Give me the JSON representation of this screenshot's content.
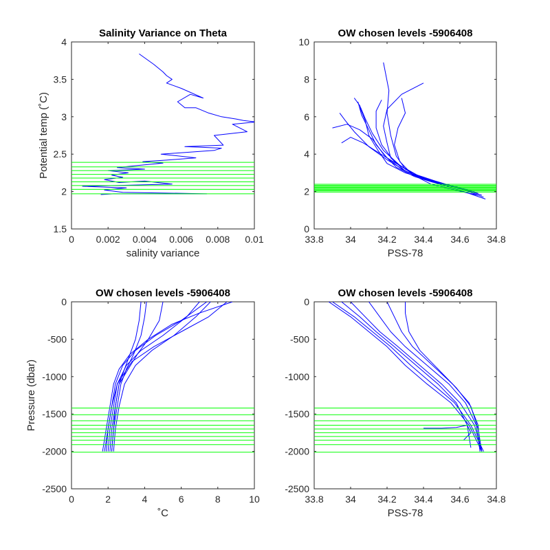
{
  "colors": {
    "profile": "#0000ff",
    "levels": "#00ff00",
    "axes": "#262626"
  },
  "chart_data": [
    {
      "id": "var",
      "type": "line",
      "title": "Salinity Variance on Theta",
      "xlabel": "salinity variance",
      "ylabel": "Potential temp (˚C)",
      "xlim": [
        0,
        0.01
      ],
      "ylim": [
        1.5,
        4
      ],
      "xticks": [
        0,
        0.002,
        0.004,
        0.006,
        0.008,
        0.01
      ],
      "xtick_labels": [
        "0",
        "0.002",
        "0.004",
        "0.006",
        "0.008",
        "0.01"
      ],
      "yticks": [
        1.5,
        2,
        2.5,
        3,
        3.5,
        4
      ],
      "ytick_labels": [
        "1.5",
        "2",
        "2.5",
        "3",
        "3.5",
        "4"
      ],
      "reverse_y": false,
      "grid": false,
      "hlines": [
        1.97,
        2.03,
        2.08,
        2.13,
        2.18,
        2.23,
        2.28,
        2.33,
        2.39
      ],
      "series": [
        {
          "x": [
            0.0037,
            0.0045,
            0.005,
            0.0052,
            0.0055,
            0.0052,
            0.006,
            0.0072,
            0.0065,
            0.0058,
            0.0062,
            0.0068,
            0.0075,
            0.0082,
            0.009,
            0.0094,
            0.0101,
            0.0088,
            0.0096,
            0.0078,
            0.0083,
            0.0062,
            0.0082,
            0.0078,
            0.0049,
            0.0068,
            0.0052,
            0.0039,
            0.005,
            0.0037,
            0.0025,
            0.004,
            0.002,
            0.0031,
            0.0022,
            0.0028,
            0.0018,
            0.0026,
            0.004,
            0.0055,
            0.0006,
            0.003,
            0.0018,
            0.0028,
            0.0074,
            0.0023,
            0.0016
          ],
          "y": [
            3.84,
            3.7,
            3.6,
            3.55,
            3.5,
            3.45,
            3.38,
            3.25,
            3.3,
            3.2,
            3.12,
            3.12,
            3.05,
            3.0,
            2.97,
            2.95,
            2.93,
            2.9,
            2.8,
            2.75,
            2.62,
            2.6,
            2.58,
            2.55,
            2.5,
            2.45,
            2.42,
            2.4,
            2.38,
            2.35,
            2.32,
            2.3,
            2.28,
            2.25,
            2.22,
            2.19,
            2.16,
            2.12,
            2.14,
            2.1,
            2.07,
            2.05,
            2.02,
            1.99,
            1.97,
            1.97,
            1.96
          ]
        }
      ]
    },
    {
      "id": "ts",
      "type": "line",
      "title": "OW chosen levels -5906408",
      "xlabel": "PSS-78",
      "ylabel": "",
      "xlim": [
        33.8,
        34.8
      ],
      "ylim": [
        0,
        10
      ],
      "xticks": [
        33.8,
        34,
        34.2,
        34.4,
        34.6,
        34.8
      ],
      "xtick_labels": [
        "33.8",
        "34",
        "34.2",
        "34.4",
        "34.6",
        "34.8"
      ],
      "yticks": [
        0,
        2,
        4,
        6,
        8,
        10
      ],
      "ytick_labels": [
        "0",
        "2",
        "4",
        "6",
        "8",
        "10"
      ],
      "reverse_y": false,
      "grid": false,
      "hlines": [
        1.97,
        2.03,
        2.08,
        2.13,
        2.18,
        2.23,
        2.28,
        2.33,
        2.39
      ],
      "series": [
        {
          "x": [
            34.73,
            34.62,
            34.5,
            34.4,
            34.3,
            34.2,
            34.15,
            34.1,
            34.08,
            34.05
          ],
          "y": [
            1.7,
            2.1,
            2.4,
            2.7,
            3.0,
            3.5,
            4.2,
            5.0,
            5.8,
            6.5
          ]
        },
        {
          "x": [
            34.72,
            34.6,
            34.45,
            34.35,
            34.25,
            34.18,
            34.12,
            34.05,
            33.98,
            33.9
          ],
          "y": [
            1.8,
            2.2,
            2.5,
            2.8,
            3.3,
            4.0,
            4.8,
            5.3,
            5.6,
            5.4
          ]
        },
        {
          "x": [
            34.7,
            34.58,
            34.42,
            34.3,
            34.22,
            34.2,
            34.18,
            34.2,
            34.28,
            34.4
          ],
          "y": [
            1.9,
            2.2,
            2.6,
            3.1,
            3.8,
            4.6,
            5.5,
            6.4,
            7.2,
            7.8
          ]
        },
        {
          "x": [
            34.68,
            34.55,
            34.4,
            34.3,
            34.25,
            34.22,
            34.2,
            34.21,
            34.19,
            34.18
          ],
          "y": [
            2.0,
            2.3,
            2.7,
            3.2,
            3.9,
            5.0,
            6.2,
            7.4,
            8.4,
            8.9
          ]
        },
        {
          "x": [
            34.66,
            34.52,
            34.38,
            34.27,
            34.18,
            34.12,
            34.08,
            34.05,
            34.02
          ],
          "y": [
            2.0,
            2.4,
            2.8,
            3.4,
            4.2,
            5.1,
            5.9,
            6.6,
            7.0
          ]
        },
        {
          "x": [
            34.64,
            34.5,
            34.36,
            34.25,
            34.15,
            34.07,
            34.0,
            33.95
          ],
          "y": [
            2.1,
            2.45,
            2.9,
            3.5,
            4.1,
            4.6,
            4.9,
            4.6
          ]
        },
        {
          "x": [
            34.62,
            34.48,
            34.34,
            34.24,
            34.17,
            34.14,
            34.14,
            34.17
          ],
          "y": [
            2.1,
            2.5,
            2.95,
            3.6,
            4.5,
            5.4,
            6.3,
            6.9
          ]
        },
        {
          "x": [
            34.6,
            34.46,
            34.32,
            34.2,
            34.1,
            34.02,
            33.97,
            33.94
          ],
          "y": [
            2.15,
            2.5,
            3.0,
            3.7,
            4.4,
            5.2,
            5.8,
            6.2
          ]
        },
        {
          "x": [
            34.7,
            34.56,
            34.44,
            34.34,
            34.27,
            34.24,
            34.26,
            34.3,
            34.28
          ],
          "y": [
            1.8,
            2.1,
            2.4,
            2.9,
            3.6,
            4.5,
            5.4,
            6.2,
            7.0
          ]
        },
        {
          "x": [
            34.74,
            34.62,
            34.5,
            34.38,
            34.28,
            34.2,
            34.14,
            34.1,
            34.06,
            34.04
          ],
          "y": [
            1.6,
            2.0,
            2.35,
            2.75,
            3.2,
            3.8,
            4.5,
            5.3,
            6.1,
            6.8
          ]
        }
      ]
    },
    {
      "id": "pt",
      "type": "line",
      "title": "OW chosen levels -5906408",
      "xlabel": "˚C",
      "ylabel": "Pressure (dbar)",
      "xlim": [
        0,
        10
      ],
      "ylim": [
        -2500,
        0
      ],
      "xticks": [
        0,
        2,
        4,
        6,
        8,
        10
      ],
      "xtick_labels": [
        "0",
        "2",
        "4",
        "6",
        "8",
        "10"
      ],
      "yticks": [
        -2500,
        -2000,
        -1500,
        -1000,
        -500,
        0
      ],
      "ytick_labels": [
        "-2500",
        "-2000",
        "-1500",
        "-1000",
        "-500",
        "0"
      ],
      "reverse_y": false,
      "grid": false,
      "hlines": [
        -1420,
        -1510,
        -1590,
        -1650,
        -1700,
        -1750,
        -1800,
        -1850,
        -1910,
        -2010
      ],
      "series": [
        {
          "x": [
            1.7,
            1.9,
            2.1,
            2.3,
            2.6,
            3.2,
            4.2,
            5.5,
            7.0,
            8.8
          ],
          "y": [
            -2000,
            -1700,
            -1400,
            -1100,
            -900,
            -700,
            -500,
            -300,
            -150,
            0
          ]
        },
        {
          "x": [
            1.8,
            2.0,
            2.2,
            2.4,
            2.8,
            3.5,
            4.6,
            6.0,
            7.4
          ],
          "y": [
            -2000,
            -1700,
            -1400,
            -1100,
            -850,
            -650,
            -450,
            -250,
            0
          ]
        },
        {
          "x": [
            2.0,
            2.1,
            2.3,
            2.5,
            3.0,
            3.8,
            5.0,
            6.3,
            7.0
          ],
          "y": [
            -2000,
            -1700,
            -1400,
            -1100,
            -850,
            -650,
            -450,
            -200,
            0
          ]
        },
        {
          "x": [
            2.1,
            2.2,
            2.4,
            2.6,
            3.1,
            3.6,
            4.2,
            4.8,
            5.0
          ],
          "y": [
            -2000,
            -1700,
            -1400,
            -1100,
            -900,
            -700,
            -500,
            -250,
            0
          ]
        },
        {
          "x": [
            2.2,
            2.3,
            2.5,
            2.7,
            3.0,
            3.4,
            3.8,
            4.0,
            4.1
          ],
          "y": [
            -2000,
            -1700,
            -1400,
            -1100,
            -900,
            -700,
            -450,
            -200,
            0
          ]
        },
        {
          "x": [
            2.3,
            2.4,
            2.6,
            2.9,
            3.5,
            4.4,
            5.6,
            6.8,
            7.6
          ],
          "y": [
            -2000,
            -1700,
            -1400,
            -1100,
            -850,
            -650,
            -450,
            -200,
            0
          ]
        },
        {
          "x": [
            1.9,
            2.0,
            2.2,
            2.5,
            3.3,
            4.5,
            6.0,
            7.5,
            8.5
          ],
          "y": [
            -2000,
            -1700,
            -1400,
            -1100,
            -800,
            -600,
            -400,
            -200,
            0
          ]
        },
        {
          "x": [
            2.2,
            2.3,
            2.4,
            2.6,
            2.9,
            3.2,
            3.5,
            3.7,
            3.8
          ],
          "y": [
            -2000,
            -1700,
            -1400,
            -1100,
            -900,
            -700,
            -500,
            -250,
            0
          ]
        }
      ]
    },
    {
      "id": "ps",
      "type": "line",
      "title": "OW chosen levels -5906408",
      "xlabel": "PSS-78",
      "ylabel": "",
      "xlim": [
        33.8,
        34.8
      ],
      "ylim": [
        -2500,
        0
      ],
      "xticks": [
        33.8,
        34,
        34.2,
        34.4,
        34.6,
        34.8
      ],
      "xtick_labels": [
        "33.8",
        "34",
        "34.2",
        "34.4",
        "34.6",
        "34.8"
      ],
      "yticks": [
        -2500,
        -2000,
        -1500,
        -1000,
        -500,
        0
      ],
      "ytick_labels": [
        "-2500",
        "-2000",
        "-1500",
        "-1000",
        "-500",
        "0"
      ],
      "reverse_y": false,
      "grid": false,
      "hlines": [
        -1420,
        -1510,
        -1590,
        -1650,
        -1700,
        -1750,
        -1800,
        -1850,
        -1910,
        -2010
      ],
      "series": [
        {
          "x": [
            33.88,
            34.0,
            34.1,
            34.2,
            34.3,
            34.42,
            34.55,
            34.65,
            34.72
          ],
          "y": [
            0,
            -200,
            -400,
            -600,
            -850,
            -1100,
            -1350,
            -1650,
            -2000
          ]
        },
        {
          "x": [
            33.9,
            34.02,
            34.12,
            34.22,
            34.33,
            34.45,
            34.57,
            34.66,
            34.73
          ],
          "y": [
            0,
            -200,
            -400,
            -600,
            -850,
            -1100,
            -1350,
            -1650,
            -2000
          ]
        },
        {
          "x": [
            34.0,
            34.08,
            34.16,
            34.26,
            34.38,
            34.5,
            34.6,
            34.68,
            34.72
          ],
          "y": [
            0,
            -200,
            -400,
            -600,
            -850,
            -1100,
            -1350,
            -1650,
            -2000
          ]
        },
        {
          "x": [
            34.1,
            34.16,
            34.22,
            34.3,
            34.42,
            34.54,
            34.63,
            34.69,
            34.71
          ],
          "y": [
            0,
            -200,
            -400,
            -600,
            -850,
            -1100,
            -1350,
            -1650,
            -2000
          ]
        },
        {
          "x": [
            34.2,
            34.24,
            34.28,
            34.34,
            34.45,
            34.56,
            34.65,
            34.7,
            34.71
          ],
          "y": [
            0,
            -200,
            -400,
            -600,
            -850,
            -1100,
            -1350,
            -1650,
            -2000
          ]
        },
        {
          "x": [
            34.3,
            34.3,
            34.32,
            34.38,
            34.48,
            34.58,
            34.66,
            34.7,
            34.72
          ],
          "y": [
            0,
            -150,
            -400,
            -650,
            -900,
            -1150,
            -1400,
            -1700,
            -2000
          ]
        },
        {
          "x": [
            33.95,
            34.05,
            34.14,
            34.24,
            34.36,
            34.48,
            34.58,
            34.64,
            34.66
          ],
          "y": [
            0,
            -200,
            -400,
            -600,
            -850,
            -1100,
            -1350,
            -1650,
            -1950
          ]
        },
        {
          "x": [
            34.4,
            34.5,
            34.58,
            34.64,
            34.66,
            34.62
          ],
          "y": [
            -1690,
            -1690,
            -1680,
            -1650,
            -1750,
            -1850
          ]
        }
      ]
    }
  ]
}
